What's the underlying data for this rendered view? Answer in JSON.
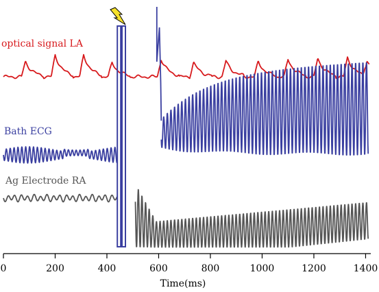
{
  "chart_data": {
    "type": "line",
    "xlabel": "Time(ms)",
    "xlim": [
      0,
      1420
    ],
    "xticks": [
      0,
      200,
      400,
      600,
      800,
      1000,
      1200,
      1400
    ],
    "grid": false,
    "annotations": [
      {
        "type": "shock-icon",
        "x": 450,
        "description": "lightning bolt marking stimulus"
      }
    ],
    "stimulus_pulses_ms": [
      447,
      465
    ],
    "series": [
      {
        "name": "optical signal LA",
        "color": "#d7191c",
        "segments": [
          {
            "x_start": 0,
            "x_end": 1415,
            "pre_interval_ms": 125,
            "post_interval_ms": 118,
            "baseline": 0,
            "amplitude_range": [
              0.3,
              1.0
            ]
          }
        ]
      },
      {
        "name": "Bath ECG",
        "color": "#3a3fa0",
        "segments": [
          {
            "x_start": 0,
            "x_end": 440,
            "period_ms": 15,
            "amplitude_range": [
              0.18,
              0.45
            ]
          },
          {
            "x_start": 610,
            "x_end": 1410,
            "period_ms": 14,
            "amplitude_range": [
              0.55,
              1.0
            ]
          }
        ]
      },
      {
        "name": "Ag Electrode RA",
        "color": "#555555",
        "segments": [
          {
            "x_start": 0,
            "x_end": 440,
            "period_ms": 25,
            "amplitude_range": [
              0.1,
              0.2
            ]
          },
          {
            "x_start": 510,
            "x_end": 1410,
            "period_ms": 14,
            "amplitude_range": [
              0.45,
              1.0
            ]
          }
        ]
      }
    ]
  }
}
